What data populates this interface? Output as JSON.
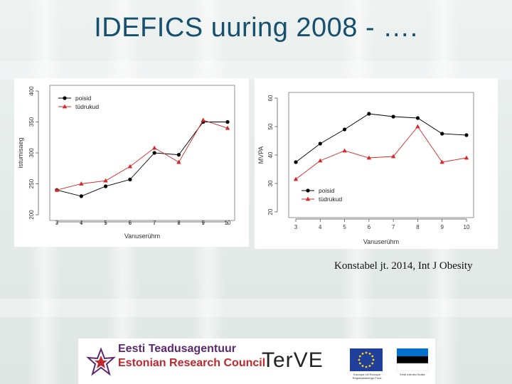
{
  "title": "IDEFICS uuring 2008 - ….",
  "citation": "Konstabel jt. 2014, Int J Obesity",
  "logos": {
    "etag_line1": "Eesti Teadusagentuur",
    "etag_line2": "Estonian Research Council",
    "terve": "Ter",
    "terve_accent": "VE",
    "eu_caption": "Euroopa Liit Euroopa Regionaalarengu Fond",
    "ee_caption": "Eesti tuleviku heaks"
  },
  "colors": {
    "title": "#16506d",
    "series_boys": "#000000",
    "series_girls": "#d62728"
  },
  "chart_data": [
    {
      "type": "line",
      "title": "",
      "xlabel": "Vanuserühm",
      "ylabel": "istumisaeg",
      "x": [
        3,
        4,
        5,
        6,
        7,
        8,
        9,
        10
      ],
      "xlim": [
        3,
        10
      ],
      "ylim": [
        200,
        400
      ],
      "yticks": [
        200,
        250,
        300,
        350,
        400
      ],
      "legend_position": "top-left",
      "series": [
        {
          "name": "poisid",
          "marker": "circle",
          "values": [
            240,
            230,
            246,
            257,
            300,
            297,
            350,
            350
          ]
        },
        {
          "name": "tüdrukud",
          "marker": "triangle",
          "values": [
            240,
            250,
            255,
            278,
            308,
            285,
            353,
            340
          ]
        }
      ]
    },
    {
      "type": "line",
      "title": "",
      "xlabel": "Vanuserühm",
      "ylabel": "MVPA",
      "x": [
        3,
        4,
        5,
        6,
        7,
        8,
        9,
        10
      ],
      "xlim": [
        3,
        10
      ],
      "ylim": [
        20,
        60
      ],
      "yticks": [
        20,
        30,
        40,
        50,
        60
      ],
      "legend_position": "bottom-left",
      "series": [
        {
          "name": "poisid",
          "marker": "circle",
          "values": [
            37.5,
            44,
            49,
            54.5,
            53.5,
            53,
            47.5,
            47
          ]
        },
        {
          "name": "tüdrukud",
          "marker": "triangle",
          "values": [
            31.5,
            38,
            41.5,
            39,
            39.5,
            50,
            37.5,
            39
          ]
        }
      ]
    }
  ]
}
